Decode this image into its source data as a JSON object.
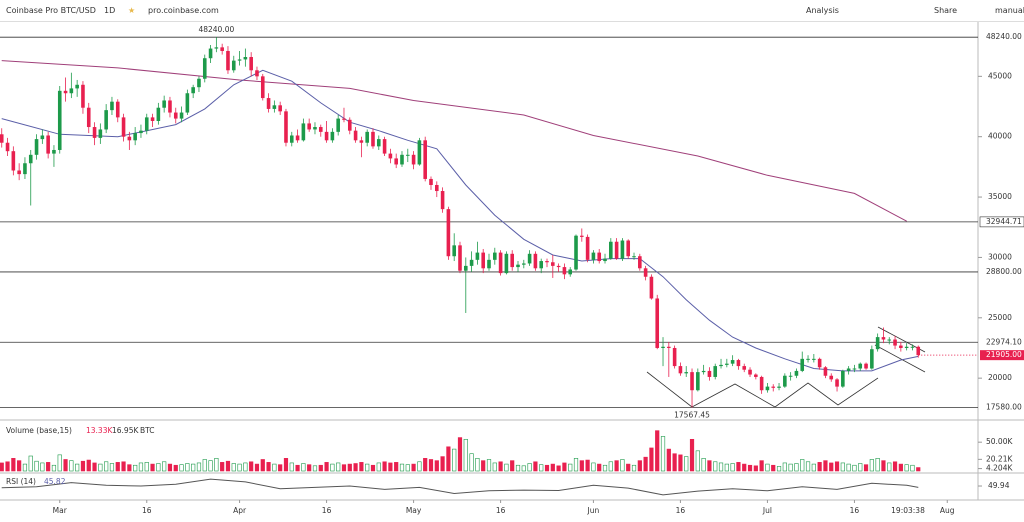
{
  "chart_data": {
    "type": "candlestick",
    "title": "Coinbase Pro BTC/USD",
    "interval": "1D",
    "source": "pro.coinbase.com",
    "toolbar": [
      "Analysis",
      "Share",
      "manual"
    ],
    "colors": {
      "up": "#1d9a4a",
      "down": "#e8204f",
      "ma20": "#5b5fa8",
      "ma200": "#a0407a"
    },
    "xlim": [
      -0.3,
      168.3
    ],
    "xticks": [
      {
        "value": 10,
        "label": "Mar"
      },
      {
        "value": 25,
        "label": "16"
      },
      {
        "value": 41,
        "label": "Apr"
      },
      {
        "value": 56,
        "label": "16"
      },
      {
        "value": 71,
        "label": "May"
      },
      {
        "value": 86,
        "label": "16"
      },
      {
        "value": 102,
        "label": "Jun"
      },
      {
        "value": 117,
        "label": "16"
      },
      {
        "value": 132,
        "label": "Jul"
      },
      {
        "value": 147,
        "label": "16"
      },
      {
        "value": 163,
        "label": "Aug"
      }
    ],
    "time_label": "19:03:38",
    "ylim": [
      16700,
      49500
    ],
    "yticks": [
      45000,
      40000,
      35000,
      30000,
      25000,
      20000
    ],
    "levels": [
      {
        "value": 48240,
        "label": "48240.00"
      },
      {
        "value": 32944.71,
        "label": "32944.71"
      },
      {
        "value": 28800,
        "label": "28800.00"
      },
      {
        "value": 22974.1,
        "label": "22974.10"
      },
      {
        "value": 17580,
        "label": "17580.00"
      }
    ],
    "last_price": {
      "value": 21905,
      "label": "21905.00"
    },
    "annotations": [
      {
        "text": "48240.00",
        "x": 37,
        "y": 48240
      },
      {
        "text": "17567.45",
        "x": 119,
        "y": 17567.45
      }
    ],
    "candles": [
      [
        40200,
        40700,
        39100,
        39500
      ],
      [
        39500,
        39900,
        38400,
        38800
      ],
      [
        38800,
        39200,
        36800,
        37200
      ],
      [
        37200,
        37800,
        36400,
        36900
      ],
      [
        36900,
        38300,
        36500,
        37800
      ],
      [
        37800,
        38900,
        34300,
        38500
      ],
      [
        38500,
        40200,
        38100,
        39800
      ],
      [
        39800,
        40600,
        39400,
        40100
      ],
      [
        40100,
        40400,
        38200,
        38600
      ],
      [
        38600,
        39300,
        37500,
        38900
      ],
      [
        38900,
        44200,
        38600,
        43800
      ],
      [
        43800,
        44900,
        42900,
        43600
      ],
      [
        43600,
        45300,
        43200,
        44000
      ],
      [
        44000,
        44700,
        43300,
        44300
      ],
      [
        44300,
        44600,
        41900,
        42400
      ],
      [
        42400,
        42800,
        40300,
        40800
      ],
      [
        40800,
        41200,
        39300,
        39900
      ],
      [
        39900,
        41100,
        39400,
        40600
      ],
      [
        40600,
        42700,
        40300,
        42200
      ],
      [
        42200,
        43300,
        41800,
        42900
      ],
      [
        42900,
        43100,
        41200,
        41600
      ],
      [
        41600,
        41900,
        39600,
        40000
      ],
      [
        40000,
        40400,
        38900,
        39700
      ],
      [
        39700,
        40800,
        39300,
        40300
      ],
      [
        40300,
        41000,
        39900,
        40500
      ],
      [
        40500,
        41900,
        40200,
        41600
      ],
      [
        41600,
        41900,
        40800,
        41300
      ],
      [
        41300,
        42800,
        41000,
        42400
      ],
      [
        42400,
        43400,
        42000,
        43000
      ],
      [
        43000,
        43300,
        41600,
        42000
      ],
      [
        42000,
        42400,
        41100,
        41500
      ],
      [
        41500,
        42500,
        41200,
        42000
      ],
      [
        42000,
        43900,
        41800,
        43600
      ],
      [
        43600,
        44300,
        43200,
        44100
      ],
      [
        44100,
        45000,
        43700,
        44800
      ],
      [
        44800,
        46800,
        44500,
        46500
      ],
      [
        46500,
        47600,
        46100,
        47300
      ],
      [
        47300,
        48240,
        47000,
        47400
      ],
      [
        47400,
        47700,
        46800,
        47100
      ],
      [
        47100,
        47500,
        45200,
        45500
      ],
      [
        45500,
        46700,
        45300,
        46300
      ],
      [
        46300,
        47100,
        45900,
        46400
      ],
      [
        46400,
        47300,
        45800,
        46600
      ],
      [
        46600,
        47000,
        45000,
        45500
      ],
      [
        45500,
        45800,
        44700,
        45000
      ],
      [
        45000,
        45200,
        43000,
        43200
      ],
      [
        43200,
        43600,
        42000,
        42300
      ],
      [
        42300,
        43000,
        42000,
        42600
      ],
      [
        42600,
        42900,
        41800,
        42100
      ],
      [
        42100,
        42300,
        39200,
        39500
      ],
      [
        39500,
        40400,
        39200,
        40100
      ],
      [
        40100,
        40600,
        39500,
        39700
      ],
      [
        39700,
        41500,
        39600,
        41100
      ],
      [
        41100,
        41500,
        40400,
        40600
      ],
      [
        40600,
        41200,
        40200,
        40800
      ],
      [
        40800,
        41000,
        40000,
        40400
      ],
      [
        40400,
        41300,
        39500,
        39700
      ],
      [
        39700,
        40700,
        39500,
        40400
      ],
      [
        40400,
        41800,
        40100,
        41500
      ],
      [
        41500,
        42400,
        41200,
        41400
      ],
      [
        41400,
        41600,
        40200,
        40500
      ],
      [
        40500,
        40800,
        39500,
        39700
      ],
      [
        39700,
        40000,
        38300,
        39500
      ],
      [
        39500,
        40600,
        39200,
        40400
      ],
      [
        40400,
        40700,
        39000,
        39200
      ],
      [
        39200,
        40100,
        38900,
        39800
      ],
      [
        39800,
        40000,
        38400,
        38600
      ],
      [
        38600,
        39000,
        37800,
        38200
      ],
      [
        38200,
        38600,
        37400,
        37700
      ],
      [
        37700,
        38800,
        37500,
        38500
      ],
      [
        38500,
        39000,
        37900,
        38500
      ],
      [
        38500,
        38800,
        37300,
        37700
      ],
      [
        37700,
        39900,
        37600,
        39700
      ],
      [
        39700,
        40000,
        36300,
        36500
      ],
      [
        36500,
        36700,
        35600,
        36000
      ],
      [
        36000,
        36300,
        35000,
        35500
      ],
      [
        35500,
        35800,
        33700,
        34000
      ],
      [
        34000,
        34200,
        29800,
        30100
      ],
      [
        30100,
        32000,
        29700,
        31000
      ],
      [
        31000,
        31300,
        28700,
        28900
      ],
      [
        28900,
        30000,
        25400,
        29300
      ],
      [
        29300,
        30500,
        28800,
        29800
      ],
      [
        29800,
        31300,
        29400,
        30400
      ],
      [
        30400,
        30700,
        28700,
        29100
      ],
      [
        29100,
        30300,
        28900,
        29800
      ],
      [
        29800,
        30800,
        29400,
        30400
      ],
      [
        30400,
        30600,
        28500,
        28700
      ],
      [
        28700,
        30500,
        28600,
        30300
      ],
      [
        30300,
        30600,
        28900,
        29200
      ],
      [
        29200,
        29700,
        28800,
        29400
      ],
      [
        29400,
        29800,
        29100,
        29500
      ],
      [
        29500,
        30600,
        29300,
        30300
      ],
      [
        30300,
        30500,
        28900,
        29100
      ],
      [
        29100,
        29900,
        28700,
        29700
      ],
      [
        29700,
        29900,
        29200,
        29600
      ],
      [
        29600,
        30200,
        28300,
        29300
      ],
      [
        29300,
        29500,
        28800,
        29200
      ],
      [
        29200,
        29500,
        28200,
        28600
      ],
      [
        28600,
        29200,
        28400,
        29000
      ],
      [
        29000,
        31900,
        28900,
        31800
      ],
      [
        31800,
        32400,
        31300,
        31700
      ],
      [
        31700,
        31900,
        29600,
        29800
      ],
      [
        29800,
        30600,
        29500,
        30400
      ],
      [
        30400,
        30700,
        29500,
        29700
      ],
      [
        29700,
        30300,
        29500,
        29900
      ],
      [
        29900,
        31600,
        29800,
        31300
      ],
      [
        31300,
        31600,
        29800,
        29900
      ],
      [
        29900,
        31600,
        29700,
        31400
      ],
      [
        31400,
        31500,
        29900,
        30100
      ],
      [
        30100,
        30400,
        29800,
        30100
      ],
      [
        30100,
        30300,
        28900,
        29100
      ],
      [
        29100,
        29300,
        28100,
        28400
      ],
      [
        28400,
        28600,
        26500,
        26600
      ],
      [
        26600,
        26900,
        22400,
        22500
      ],
      [
        22500,
        23400,
        21000,
        22600
      ],
      [
        22600,
        23000,
        20100,
        22500
      ],
      [
        22500,
        22700,
        20800,
        21000
      ],
      [
        21000,
        21300,
        20200,
        20400
      ],
      [
        20400,
        21000,
        20100,
        20500
      ],
      [
        20500,
        20800,
        17567,
        19000
      ],
      [
        19000,
        20800,
        18900,
        20500
      ],
      [
        20500,
        21100,
        20300,
        20600
      ],
      [
        20600,
        20900,
        19800,
        20100
      ],
      [
        20100,
        21200,
        19900,
        21000
      ],
      [
        21000,
        21600,
        20800,
        21100
      ],
      [
        21100,
        21600,
        20900,
        21200
      ],
      [
        21200,
        21900,
        21000,
        21500
      ],
      [
        21500,
        21600,
        20700,
        21000
      ],
      [
        21000,
        21200,
        20500,
        20700
      ],
      [
        20700,
        20900,
        20100,
        20300
      ],
      [
        20300,
        20400,
        19900,
        20100
      ],
      [
        20100,
        20200,
        18700,
        19000
      ],
      [
        19000,
        19600,
        18800,
        19300
      ],
      [
        19300,
        19500,
        18900,
        19200
      ],
      [
        19200,
        19600,
        19000,
        19300
      ],
      [
        19300,
        20400,
        19200,
        20200
      ],
      [
        20200,
        20500,
        19800,
        20200
      ],
      [
        20200,
        20800,
        20000,
        20600
      ],
      [
        20600,
        22200,
        20500,
        21600
      ],
      [
        21600,
        21900,
        21300,
        21600
      ],
      [
        21600,
        22000,
        21300,
        21600
      ],
      [
        21600,
        21700,
        20700,
        20900
      ],
      [
        20900,
        21000,
        20000,
        20200
      ],
      [
        20200,
        20400,
        19700,
        19900
      ],
      [
        19900,
        20000,
        18900,
        19300
      ],
      [
        19300,
        20700,
        19200,
        20600
      ],
      [
        20600,
        21000,
        20300,
        20800
      ],
      [
        20800,
        21100,
        20500,
        20800
      ],
      [
        20800,
        21300,
        20600,
        21200
      ],
      [
        21200,
        21300,
        20700,
        20800
      ],
      [
        20800,
        22700,
        20700,
        22400
      ],
      [
        22400,
        23700,
        22200,
        23400
      ],
      [
        23400,
        24200,
        22900,
        23200
      ],
      [
        23200,
        23400,
        22800,
        23200
      ],
      [
        23200,
        23500,
        22400,
        22700
      ],
      [
        22700,
        23000,
        22200,
        22500
      ],
      [
        22500,
        22900,
        22300,
        22600
      ],
      [
        22600,
        22800,
        22300,
        22600
      ],
      [
        22600,
        22700,
        21700,
        21905
      ]
    ],
    "volume": {
      "title": "Volume (base,15)",
      "labels": [
        "13.33K",
        "16.95K",
        "BTC"
      ],
      "ylim": [
        0,
        85
      ],
      "yticks": [
        {
          "value": 50,
          "label": "50.00K"
        },
        {
          "value": 20.21,
          "label": "20.21K"
        },
        {
          "value": 4.204,
          "label": "4.204K"
        }
      ],
      "values": [
        14,
        16,
        22,
        18,
        12,
        26,
        17,
        14,
        15,
        10,
        28,
        20,
        18,
        12,
        17,
        19,
        14,
        12,
        16,
        13,
        15,
        16,
        11,
        10,
        14,
        15,
        12,
        13,
        16,
        12,
        10,
        11,
        13,
        12,
        14,
        20,
        18,
        22,
        15,
        17,
        13,
        12,
        14,
        16,
        12,
        20,
        15,
        12,
        11,
        22,
        14,
        10,
        13,
        11,
        9,
        10,
        15,
        12,
        14,
        11,
        12,
        13,
        15,
        12,
        10,
        14,
        16,
        14,
        15,
        12,
        11,
        12,
        16,
        22,
        20,
        18,
        25,
        42,
        38,
        58,
        55,
        30,
        22,
        18,
        20,
        14,
        16,
        12,
        18,
        10,
        9,
        13,
        16,
        11,
        10,
        12,
        9,
        14,
        12,
        22,
        18,
        19,
        14,
        12,
        10,
        16,
        18,
        20,
        12,
        10,
        18,
        24,
        40,
        70,
        60,
        38,
        30,
        28,
        25,
        55,
        35,
        22,
        18,
        16,
        14,
        12,
        13,
        15,
        12,
        10,
        9,
        18,
        12,
        10,
        8,
        14,
        12,
        13,
        20,
        16,
        12,
        15,
        18,
        14,
        16,
        14,
        12,
        10,
        13,
        11,
        20,
        22,
        18,
        14,
        16,
        12,
        11,
        10,
        6
      ]
    },
    "ma20": {
      "x": [
        0,
        10,
        20,
        25,
        30,
        35,
        40,
        45,
        50,
        55,
        60,
        65,
        70,
        75,
        80,
        85,
        90,
        95,
        100,
        105,
        110,
        114,
        118,
        122,
        126,
        130,
        135,
        140,
        145,
        150,
        155,
        158
      ],
      "values": [
        41500,
        40200,
        40000,
        40500,
        41000,
        42300,
        44300,
        45500,
        44600,
        42800,
        41200,
        40500,
        39700,
        39000,
        36000,
        33500,
        31500,
        30200,
        29700,
        29900,
        29900,
        28400,
        26500,
        24800,
        23400,
        22500,
        21600,
        20800,
        20600,
        20600,
        21500,
        21800
      ]
    },
    "ma200": {
      "x": [
        0,
        20,
        41,
        60,
        71,
        90,
        102,
        120,
        132,
        147,
        156
      ],
      "values": [
        46300,
        45700,
        44700,
        44000,
        43000,
        41800,
        40100,
        38400,
        36800,
        35300,
        33000
      ]
    },
    "rsi": {
      "title": "RSI (14)",
      "value_label": "45.82",
      "ylim": [
        15,
        85
      ],
      "yticks": [
        {
          "value": 49.94,
          "label": "49.94"
        }
      ],
      "x": [
        0,
        6,
        12,
        18,
        24,
        30,
        36,
        42,
        48,
        54,
        60,
        66,
        72,
        78,
        84,
        90,
        96,
        102,
        108,
        114,
        120,
        126,
        132,
        138,
        144,
        150,
        156,
        158
      ],
      "values": [
        45,
        48,
        60,
        52,
        50,
        55,
        70,
        62,
        42,
        46,
        50,
        40,
        46,
        28,
        36,
        38,
        37,
        52,
        44,
        24,
        35,
        42,
        36,
        48,
        40,
        58,
        52,
        46
      ]
    }
  }
}
